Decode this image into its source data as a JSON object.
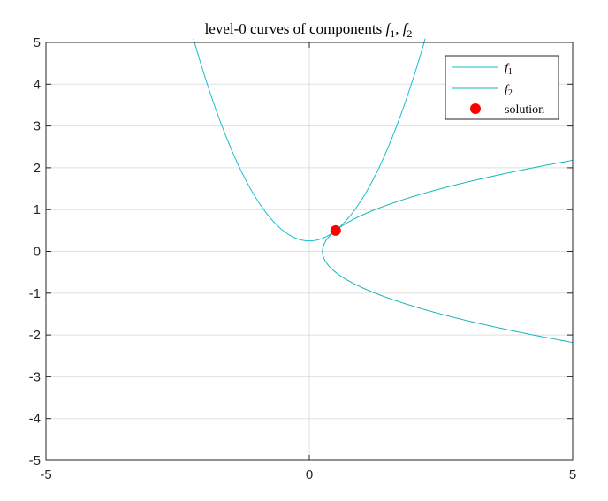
{
  "chart_data": {
    "type": "line",
    "title": {
      "prefix": "level-0 curves of components ",
      "var1": "f",
      "sub1": "1",
      "sep": ", ",
      "var2": "f",
      "sub2": "2"
    },
    "xlabel": "",
    "ylabel": "",
    "xlim": [
      -5,
      5
    ],
    "ylim": [
      -5,
      5
    ],
    "xticks": [
      -5,
      0,
      5
    ],
    "yticks": [
      -5,
      -4,
      -3,
      -2,
      -1,
      0,
      1,
      2,
      3,
      4,
      5
    ],
    "grid": true,
    "legend_position": "top-right",
    "colors": {
      "f1": "#17becf",
      "f2": "#17b5b5",
      "solution": "#ff0000"
    },
    "series": [
      {
        "name_var": "f",
        "name_sub": "1",
        "equation": "y = x^2 + 0.25",
        "x_range": [
          -2.2,
          2.2
        ]
      },
      {
        "name_var": "f",
        "name_sub": "2",
        "equation": "x = y^2 + 0.25",
        "y_range": [
          -2.18,
          2.18
        ]
      }
    ],
    "points": [
      {
        "name": "solution",
        "x": 0.5,
        "y": 0.5
      }
    ]
  }
}
